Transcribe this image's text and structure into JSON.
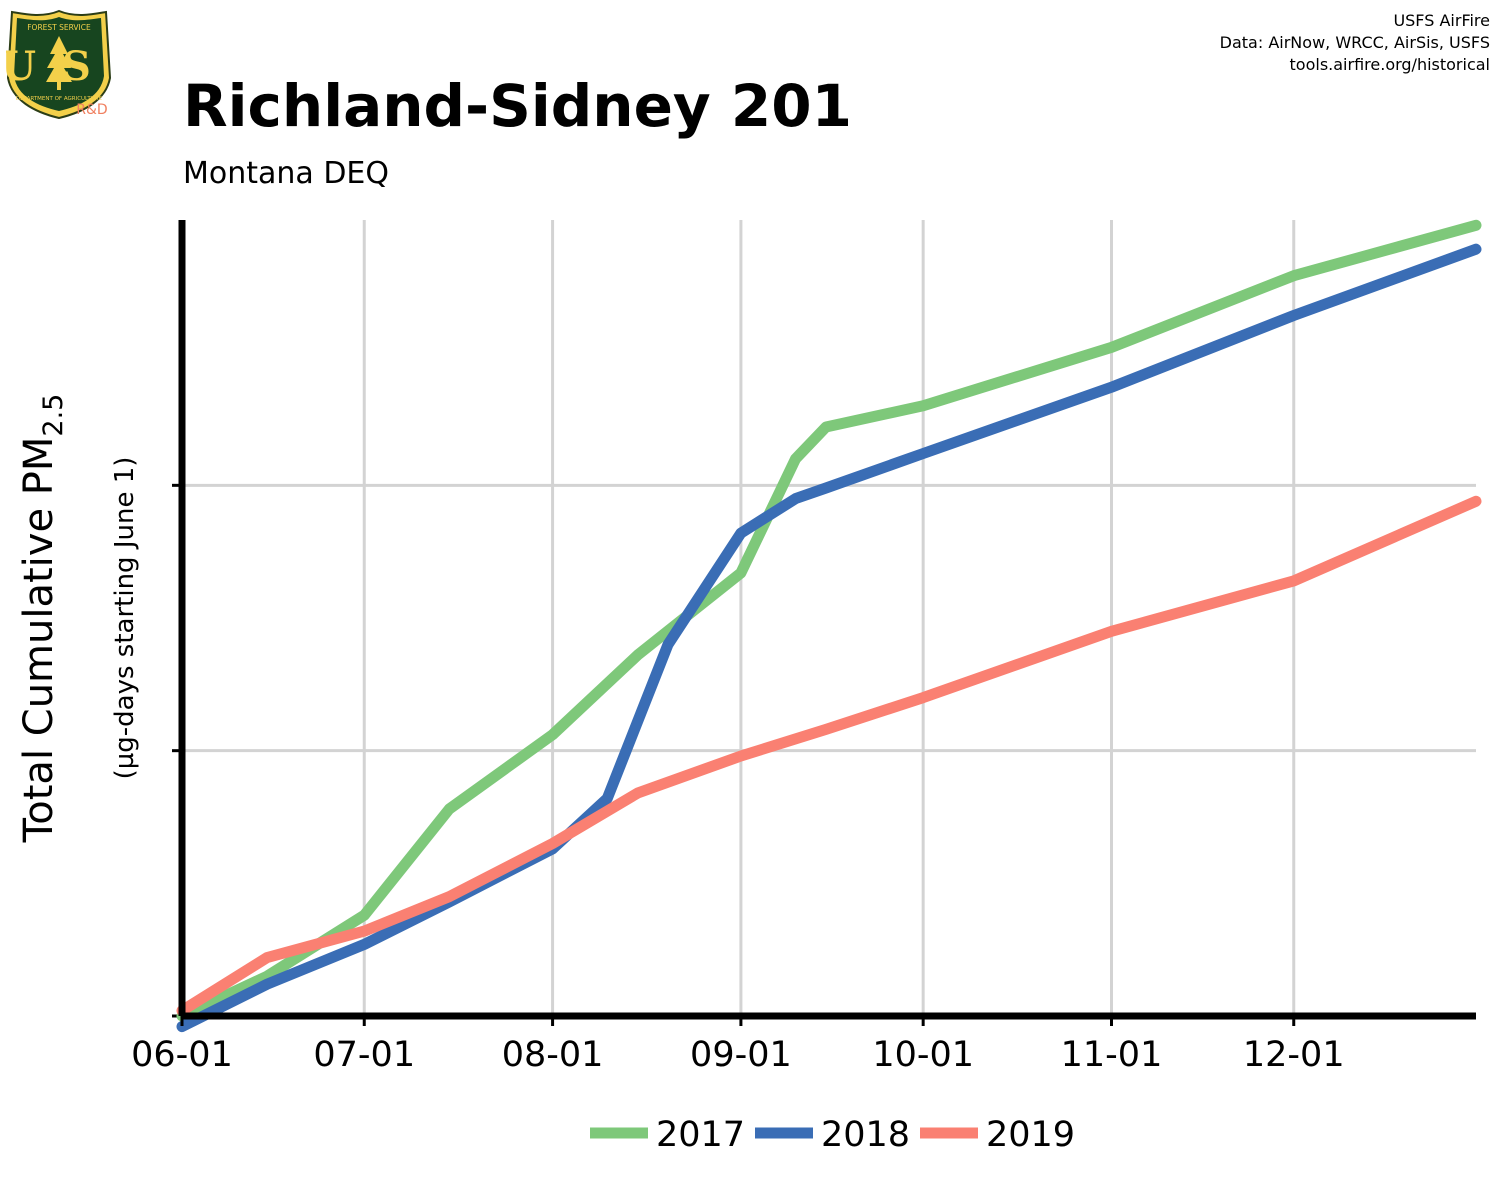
{
  "header": {
    "title": "Richland-Sidney 201",
    "subtitle": "Montana DEQ",
    "credits": [
      "USFS AirFire",
      "Data: AirNow, WRCC, AirSis, USFS",
      "tools.airfire.org/historical"
    ]
  },
  "logo": {
    "top_text": "FOREST SERVICE",
    "letters": "US",
    "bottom_text": "DEPARTMENT OF AGRICULTURE",
    "badge": "R&D"
  },
  "chart_data": {
    "type": "line",
    "ylabel_main": "Total Cumulative PM",
    "ylabel_sub": "2.5",
    "ylabel_units": "(µg-days starting June 1)",
    "x_range": [
      "06-01",
      "12-31"
    ],
    "x_ticks": [
      "06-01",
      "07-01",
      "08-01",
      "09-01",
      "10-01",
      "11-01",
      "12-01"
    ],
    "y_ticks_labeled": false,
    "grid": true,
    "legend_position": "bottom",
    "colors": {
      "2017": "#7ec87a",
      "2018": "#3a6db5",
      "2019": "#fa8072",
      "grid": "#d3d3d3",
      "axis": "#000000"
    },
    "series": [
      {
        "name": "2017",
        "x": [
          "06-01",
          "06-15",
          "07-01",
          "07-15",
          "08-01",
          "08-15",
          "09-01",
          "09-10",
          "09-15",
          "10-01",
          "11-01",
          "12-01",
          "12-31"
        ],
        "y": [
          0.0,
          0.15,
          0.38,
          0.78,
          1.06,
          1.36,
          1.67,
          2.1,
          2.22,
          2.3,
          2.52,
          2.79,
          2.98
        ]
      },
      {
        "name": "2018",
        "x": [
          "06-01",
          "06-15",
          "07-01",
          "07-15",
          "08-01",
          "08-10",
          "08-20",
          "09-01",
          "09-10",
          "09-15",
          "10-01",
          "11-01",
          "12-01",
          "12-31"
        ],
        "y": [
          -0.04,
          0.12,
          0.27,
          0.43,
          0.63,
          0.82,
          1.4,
          1.82,
          1.95,
          1.99,
          2.12,
          2.37,
          2.64,
          2.89
        ]
      },
      {
        "name": "2019",
        "x": [
          "06-01",
          "06-15",
          "07-01",
          "07-15",
          "08-01",
          "08-15",
          "09-01",
          "09-15",
          "10-01",
          "11-01",
          "12-01",
          "12-31"
        ],
        "y": [
          0.02,
          0.22,
          0.32,
          0.45,
          0.65,
          0.84,
          0.98,
          1.08,
          1.2,
          1.45,
          1.64,
          1.94
        ]
      }
    ]
  }
}
